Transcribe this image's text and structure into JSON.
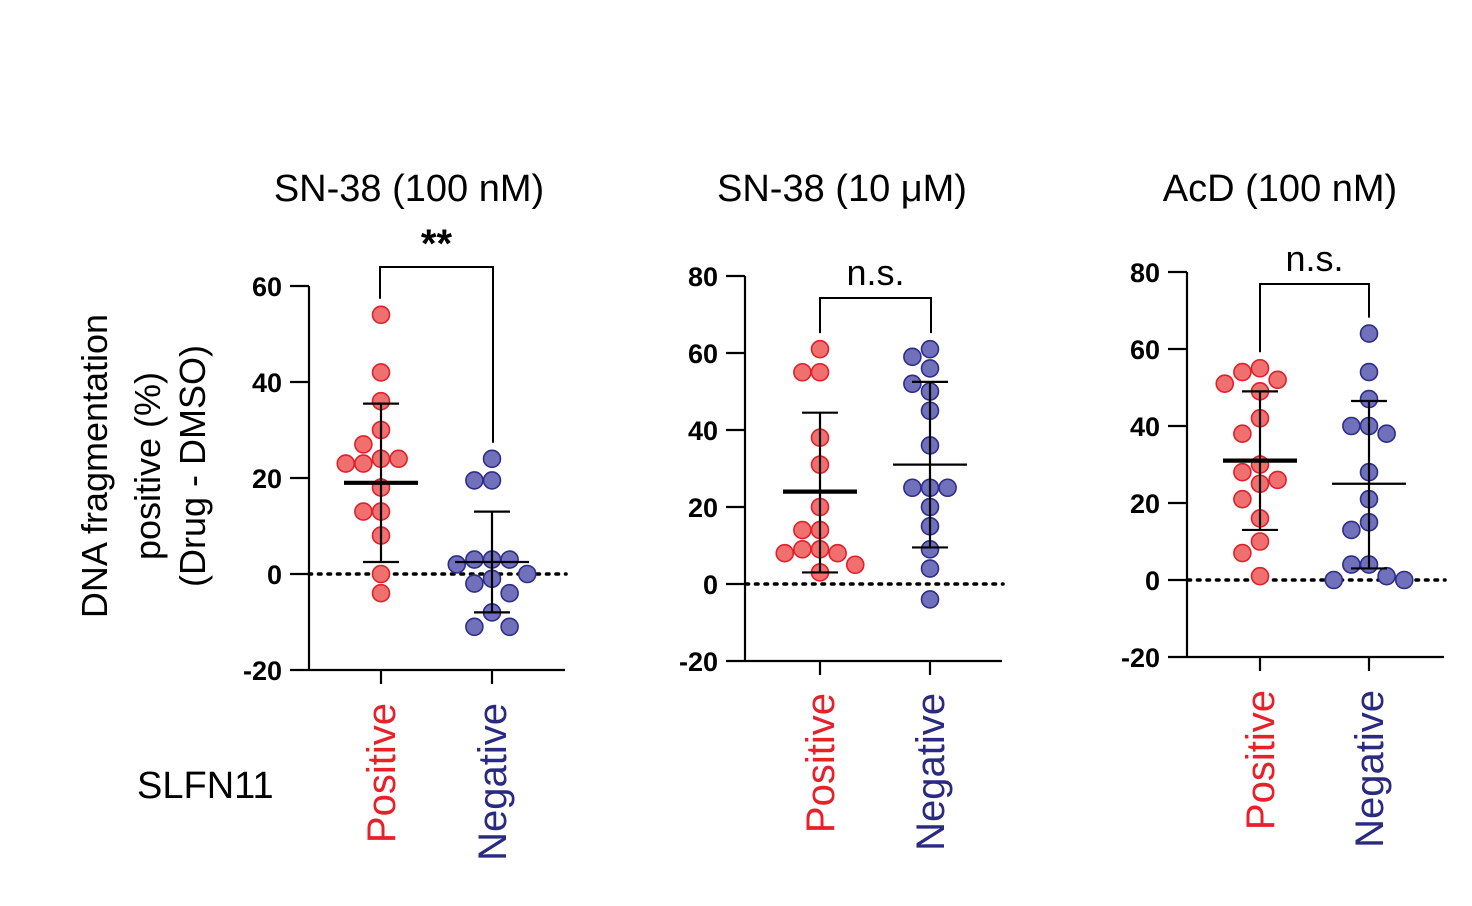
{
  "figure": {
    "y_axis_label_lines": [
      "DNA fragmentation",
      "positive (%)",
      "(Drug - DMSO)"
    ],
    "row_label": "SLFN11",
    "colors": {
      "positive_fill": "#f07070",
      "positive_edge": "#e0202a",
      "negative_fill": "#7070bb",
      "negative_edge": "#2e2e88",
      "positive_text": "#e8202a",
      "negative_text": "#2a2a80"
    }
  },
  "chart_data": [
    {
      "type": "scatter",
      "title": "SN-38 (100 nM)",
      "categories": [
        "Positive",
        "Negative"
      ],
      "ylim": [
        -20,
        60
      ],
      "yticks": [
        -20,
        0,
        20,
        40,
        60
      ],
      "significance": "**",
      "series": [
        {
          "name": "Positive",
          "mean": 19,
          "sd_upper": 35.5,
          "sd_lower": 2.5,
          "points": [
            54,
            42,
            36,
            30,
            27,
            24,
            24,
            23,
            23,
            18,
            13,
            13,
            8,
            0,
            -4
          ]
        },
        {
          "name": "Negative",
          "mean": 2.5,
          "sd_upper": 13,
          "sd_lower": -8,
          "points": [
            24,
            19.5,
            19.5,
            3,
            3,
            3,
            2,
            0,
            -1,
            -2,
            -4,
            -8,
            -11,
            -11
          ]
        }
      ]
    },
    {
      "type": "scatter",
      "title": "SN-38 (10 μM)",
      "categories": [
        "Positive",
        "Negative"
      ],
      "ylim": [
        -20,
        80
      ],
      "yticks": [
        -20,
        0,
        20,
        40,
        60,
        80
      ],
      "significance": "n.s.",
      "series": [
        {
          "name": "Positive",
          "mean": 24,
          "sd_upper": 44.5,
          "sd_lower": 3,
          "points": [
            61,
            55,
            55,
            38,
            31,
            20,
            14,
            14,
            9,
            9,
            8,
            8,
            5,
            3
          ]
        },
        {
          "name": "Negative",
          "mean": 31,
          "sd_upper": 52.5,
          "sd_lower": 9.5,
          "points": [
            61,
            59,
            56,
            52,
            50,
            45,
            36,
            25,
            25,
            25,
            20,
            15,
            9,
            4,
            -4
          ]
        }
      ]
    },
    {
      "type": "scatter",
      "title": "AcD (100 nM)",
      "categories": [
        "Positive",
        "Negative"
      ],
      "ylim": [
        -20,
        80
      ],
      "yticks": [
        -20,
        0,
        20,
        40,
        60,
        80
      ],
      "significance": "n.s.",
      "series": [
        {
          "name": "Positive",
          "mean": 31,
          "sd_upper": 49,
          "sd_lower": 13,
          "points": [
            55,
            54,
            52,
            51,
            49,
            42,
            38,
            30,
            28,
            26,
            25,
            21,
            16,
            10,
            7,
            1
          ]
        },
        {
          "name": "Negative",
          "mean": 25,
          "sd_upper": 46.5,
          "sd_lower": 3,
          "points": [
            64,
            54,
            47,
            40,
            40,
            38,
            28,
            21,
            15,
            13,
            4,
            4,
            1,
            0,
            0
          ]
        }
      ]
    }
  ]
}
